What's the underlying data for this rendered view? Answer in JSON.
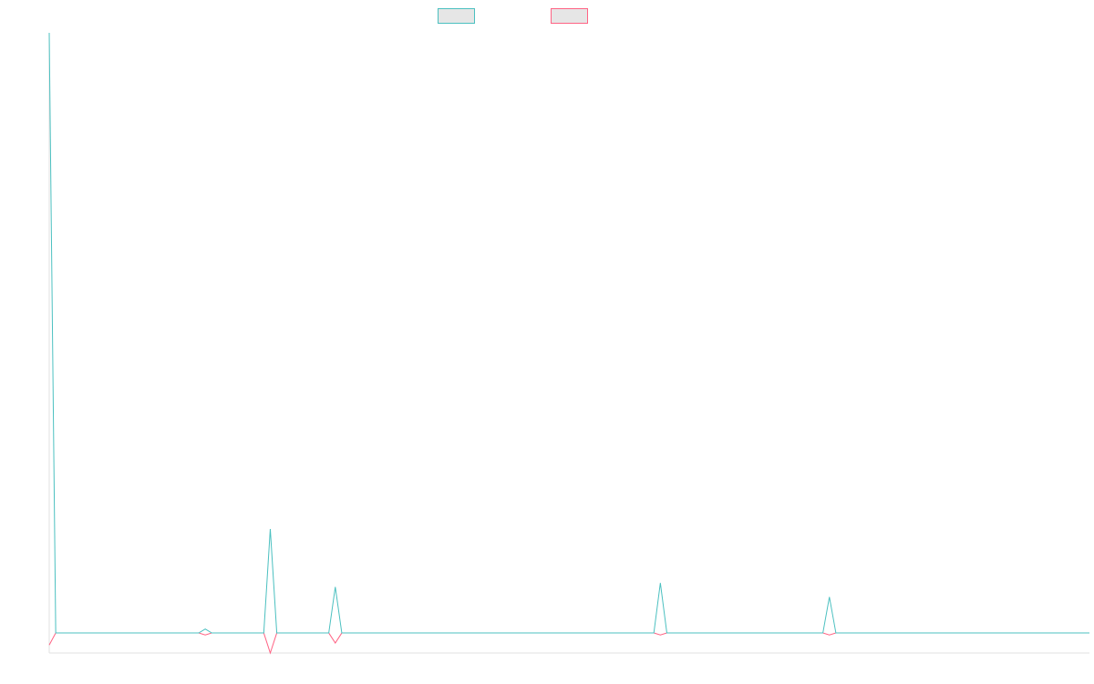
{
  "chart_data": {
    "type": "line",
    "categories": [
      null,
      null,
      null,
      null,
      null,
      null,
      null,
      null,
      null,
      null,
      null,
      null,
      null,
      null,
      null,
      null,
      null,
      null,
      null,
      null,
      null,
      null,
      null,
      null,
      null,
      null,
      null,
      null,
      null,
      null,
      null,
      null,
      null,
      null,
      null,
      null,
      null,
      null,
      null,
      null,
      null,
      null,
      null,
      null,
      null,
      null,
      null,
      null,
      null,
      null,
      null,
      null,
      null,
      null,
      null,
      null,
      null,
      null,
      null,
      null,
      null,
      null,
      null,
      null,
      null,
      null,
      null,
      null,
      null,
      null,
      null,
      null,
      null,
      null,
      null,
      null,
      null,
      null,
      null,
      null,
      null,
      null,
      null,
      null,
      null,
      null,
      null,
      null,
      null,
      null,
      null,
      null,
      null,
      null,
      null,
      null,
      null,
      null,
      null,
      null,
      null,
      null,
      null,
      null,
      null,
      null,
      null,
      null,
      null,
      null,
      null,
      null,
      null,
      null,
      null,
      null,
      null,
      null,
      null,
      null,
      null,
      null,
      null,
      null,
      null,
      null,
      null,
      null,
      null,
      null,
      null,
      null,
      null,
      null,
      null,
      null,
      null,
      null,
      null,
      null,
      null,
      null,
      null,
      null,
      null,
      null,
      null,
      null,
      null,
      null,
      null,
      null,
      null,
      null,
      null,
      null,
      null,
      null,
      null,
      null,
      null
    ],
    "series": [
      {
        "color": "#ff6384",
        "values": [
          -6,
          0,
          0,
          0,
          0,
          0,
          0,
          0,
          0,
          0,
          0,
          0,
          0,
          0,
          0,
          0,
          0,
          0,
          0,
          0,
          0,
          0,
          0,
          0,
          -1,
          0,
          0,
          0,
          0,
          0,
          0,
          0,
          0,
          0,
          -10,
          0,
          0,
          0,
          0,
          0,
          0,
          0,
          0,
          0,
          -5,
          0,
          0,
          0,
          0,
          0,
          0,
          0,
          0,
          0,
          0,
          0,
          0,
          0,
          0,
          0,
          0,
          0,
          0,
          0,
          0,
          0,
          0,
          0,
          0,
          0,
          0,
          0,
          0,
          0,
          0,
          0,
          0,
          0,
          0,
          0,
          0,
          0,
          0,
          0,
          0,
          0,
          0,
          0,
          0,
          0,
          0,
          0,
          0,
          0,
          -1,
          0,
          0,
          0,
          0,
          0,
          0,
          0,
          0,
          0,
          0,
          0,
          0,
          0,
          0,
          0,
          0,
          0,
          0,
          0,
          0,
          0,
          0,
          0,
          0,
          0,
          -1,
          0,
          0,
          0,
          0,
          0,
          0,
          0,
          0,
          0,
          0,
          0,
          0,
          0,
          0,
          0,
          0,
          0,
          0,
          0,
          0,
          0,
          0,
          0,
          0,
          0,
          0,
          0,
          0,
          0,
          0,
          0,
          0,
          0,
          0,
          0,
          0,
          0,
          0,
          0,
          0
        ]
      },
      {
        "color": "#4bc0c0",
        "values": [
          300,
          0,
          0,
          0,
          0,
          0,
          0,
          0,
          0,
          0,
          0,
          0,
          0,
          0,
          0,
          0,
          0,
          0,
          0,
          0,
          0,
          0,
          0,
          0,
          2,
          0,
          0,
          0,
          0,
          0,
          0,
          0,
          0,
          0,
          52,
          0,
          0,
          0,
          0,
          0,
          0,
          0,
          0,
          0,
          23,
          0,
          0,
          0,
          0,
          0,
          0,
          0,
          0,
          0,
          0,
          0,
          0,
          0,
          0,
          0,
          0,
          0,
          0,
          0,
          0,
          0,
          0,
          0,
          0,
          0,
          0,
          0,
          0,
          0,
          0,
          0,
          0,
          0,
          0,
          0,
          0,
          0,
          0,
          0,
          0,
          0,
          0,
          0,
          0,
          0,
          0,
          0,
          0,
          0,
          25,
          0,
          0,
          0,
          0,
          0,
          0,
          0,
          0,
          0,
          0,
          0,
          0,
          0,
          0,
          0,
          0,
          0,
          0,
          0,
          0,
          0,
          0,
          0,
          0,
          0,
          18,
          0,
          0,
          0,
          0,
          0,
          0,
          0,
          0,
          0,
          0,
          0,
          0,
          0,
          0,
          0,
          0,
          0,
          0,
          0,
          0,
          0,
          0,
          0,
          0,
          0,
          0,
          0,
          0,
          0,
          0,
          0,
          0,
          0,
          0,
          0,
          0,
          0,
          0,
          0,
          0
        ]
      }
    ],
    "ylim": [
      -10,
      300
    ]
  }
}
